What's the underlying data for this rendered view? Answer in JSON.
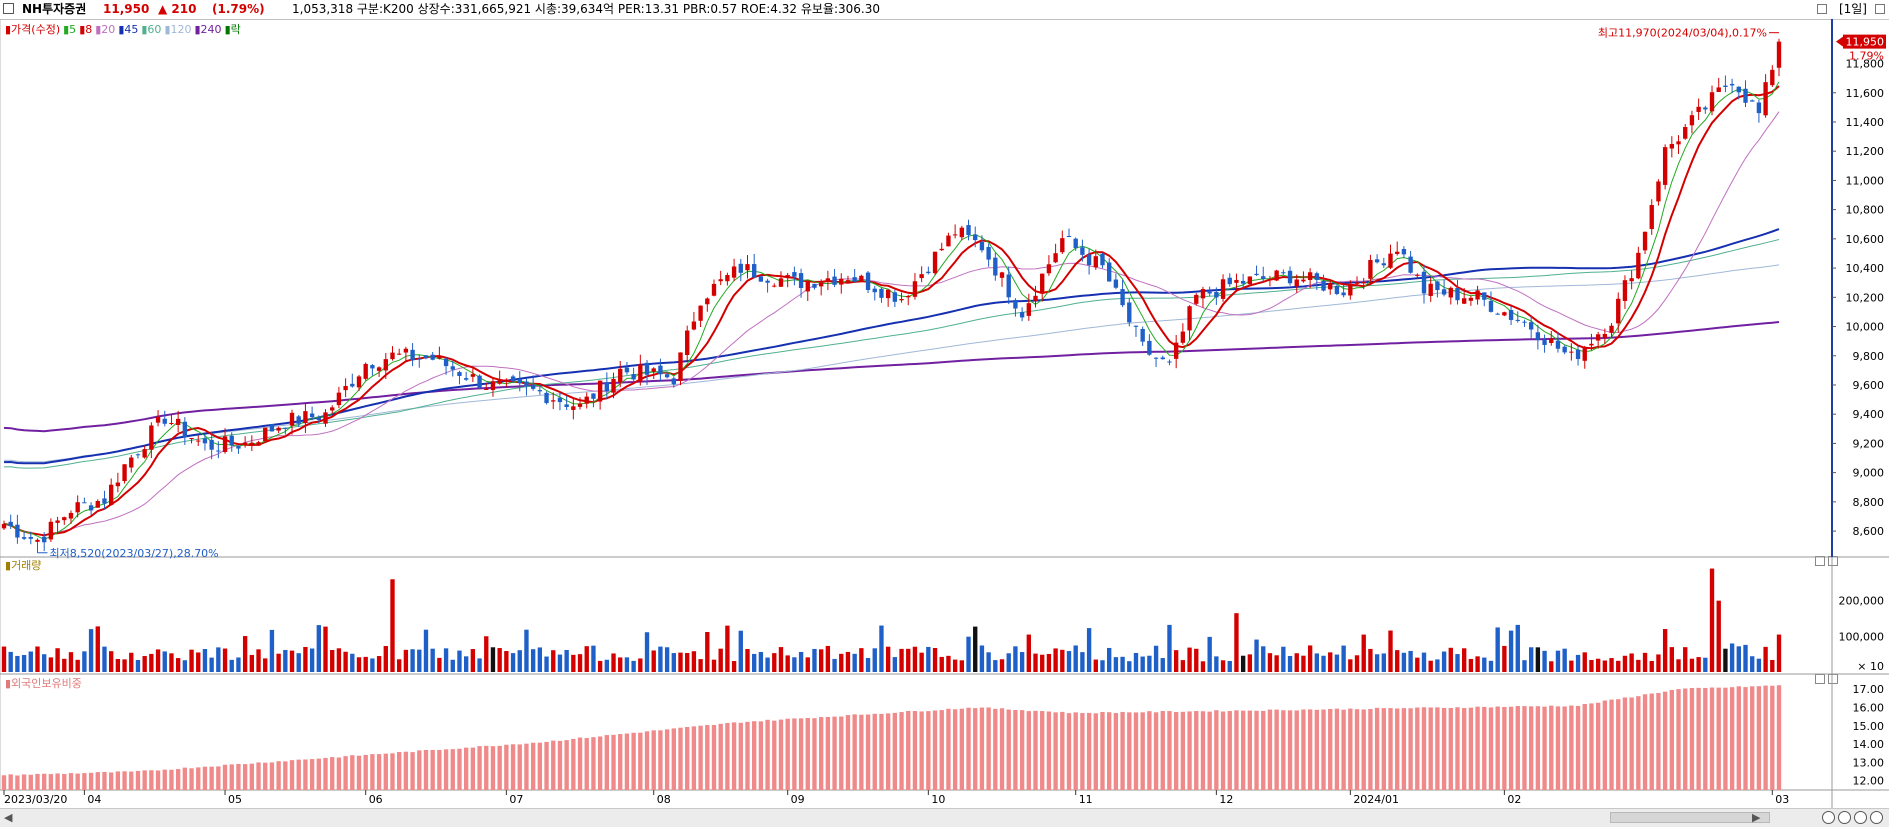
{
  "header": {
    "symbol": "NH투자증권",
    "price": "11,950",
    "change": "▲ 210",
    "change_pct": "(1.79%)",
    "stats": "1,053,318  구분:K200 상장수:331,665,921 시총:39,634억 PER:13.31 PBR:0.57 ROE:4.32 유보율:306.30",
    "period": "[1일]"
  },
  "price_panel": {
    "legend": [
      {
        "text": "가격(수정)",
        "color": "#d40000"
      },
      {
        "text": "5",
        "color": "#22aa22"
      },
      {
        "text": "8",
        "color": "#d40000"
      },
      {
        "text": "20",
        "color": "#c070c0"
      },
      {
        "text": "45",
        "color": "#1530b0"
      },
      {
        "text": "60",
        "color": "#50b090"
      },
      {
        "text": "120",
        "color": "#a0b8d8"
      },
      {
        "text": "240",
        "color": "#7020a0"
      },
      {
        "text": "락",
        "color": "#007700"
      }
    ],
    "high_label": "최고11,970(2024/03/04),0.17%",
    "low_label": "최저8,520(2023/03/27),28.70%",
    "current_price_tag": "11,950",
    "current_pct_tag": "1.79%",
    "y_ticks": [
      "11,600",
      "11,400",
      "11,200",
      "11,000",
      "10,800",
      "10,600",
      "10,400",
      "10,200",
      "10,000",
      "9,800",
      "9,600",
      "9,400",
      "9,200",
      "9,000",
      "8,800",
      "8,600"
    ],
    "y_top_tick": "11,800"
  },
  "volume_panel": {
    "title": "거래량",
    "y_ticks": [
      "200,000",
      "100,000"
    ],
    "unit": "× 10"
  },
  "foreign_panel": {
    "title": "외국인보유비중",
    "y_ticks": [
      "17.00",
      "16.00",
      "15.00",
      "14.00",
      "13.00",
      "12.00"
    ]
  },
  "x_axis": {
    "labels": [
      "2023/03/20",
      "04",
      "05",
      "06",
      "07",
      "08",
      "09",
      "10",
      "11",
      "12",
      "2024/01",
      "02",
      "03"
    ]
  },
  "colors": {
    "up": "#d40000",
    "down": "#1f5fc8",
    "ma5": "#22aa22",
    "ma8": "#d40000",
    "ma20": "#c070c0",
    "ma45": "#1530b0",
    "ma60": "#50b090",
    "ma120": "#a0b8d8",
    "ma240": "#7020a0",
    "foreign": "#f08a8a"
  },
  "chart_data": {
    "type": "candlestick",
    "y_range": [
      8450,
      12050
    ],
    "keypoints": [
      {
        "i": 0,
        "v": 8650
      },
      {
        "i": 5,
        "v": 8530
      },
      {
        "i": 10,
        "v": 8750
      },
      {
        "i": 15,
        "v": 8820
      },
      {
        "i": 18,
        "v": 9050
      },
      {
        "i": 24,
        "v": 9380
      },
      {
        "i": 30,
        "v": 9180
      },
      {
        "i": 36,
        "v": 9200
      },
      {
        "i": 42,
        "v": 9350
      },
      {
        "i": 48,
        "v": 9400
      },
      {
        "i": 54,
        "v": 9750
      },
      {
        "i": 58,
        "v": 9800
      },
      {
        "i": 64,
        "v": 9780
      },
      {
        "i": 72,
        "v": 9600
      },
      {
        "i": 80,
        "v": 9550
      },
      {
        "i": 86,
        "v": 9450
      },
      {
        "i": 92,
        "v": 9700
      },
      {
        "i": 100,
        "v": 9650
      },
      {
        "i": 104,
        "v": 10200
      },
      {
        "i": 110,
        "v": 10400
      },
      {
        "i": 118,
        "v": 10300
      },
      {
        "i": 126,
        "v": 10350
      },
      {
        "i": 134,
        "v": 10200
      },
      {
        "i": 142,
        "v": 10650
      },
      {
        "i": 146,
        "v": 10550
      },
      {
        "i": 152,
        "v": 10100
      },
      {
        "i": 158,
        "v": 10600
      },
      {
        "i": 164,
        "v": 10400
      },
      {
        "i": 170,
        "v": 9850
      },
      {
        "i": 174,
        "v": 9720
      },
      {
        "i": 178,
        "v": 10200
      },
      {
        "i": 184,
        "v": 10300
      },
      {
        "i": 192,
        "v": 10350
      },
      {
        "i": 200,
        "v": 10250
      },
      {
        "i": 208,
        "v": 10550
      },
      {
        "i": 212,
        "v": 10250
      },
      {
        "i": 220,
        "v": 10200
      },
      {
        "i": 228,
        "v": 10000
      },
      {
        "i": 234,
        "v": 9780
      },
      {
        "i": 240,
        "v": 10050
      },
      {
        "i": 244,
        "v": 10500
      },
      {
        "i": 248,
        "v": 11200
      },
      {
        "i": 254,
        "v": 11500
      },
      {
        "i": 258,
        "v": 11700
      },
      {
        "i": 262,
        "v": 11450
      },
      {
        "i": 265,
        "v": 11950
      }
    ],
    "ma_endpoints": {
      "ma45": 10660,
      "ma60": 10600,
      "ma120": 10420,
      "ma240": 9980
    },
    "month_starts": [
      0,
      9,
      30,
      51,
      71,
      94,
      114,
      135,
      157,
      178,
      198,
      221,
      243,
      263
    ]
  }
}
